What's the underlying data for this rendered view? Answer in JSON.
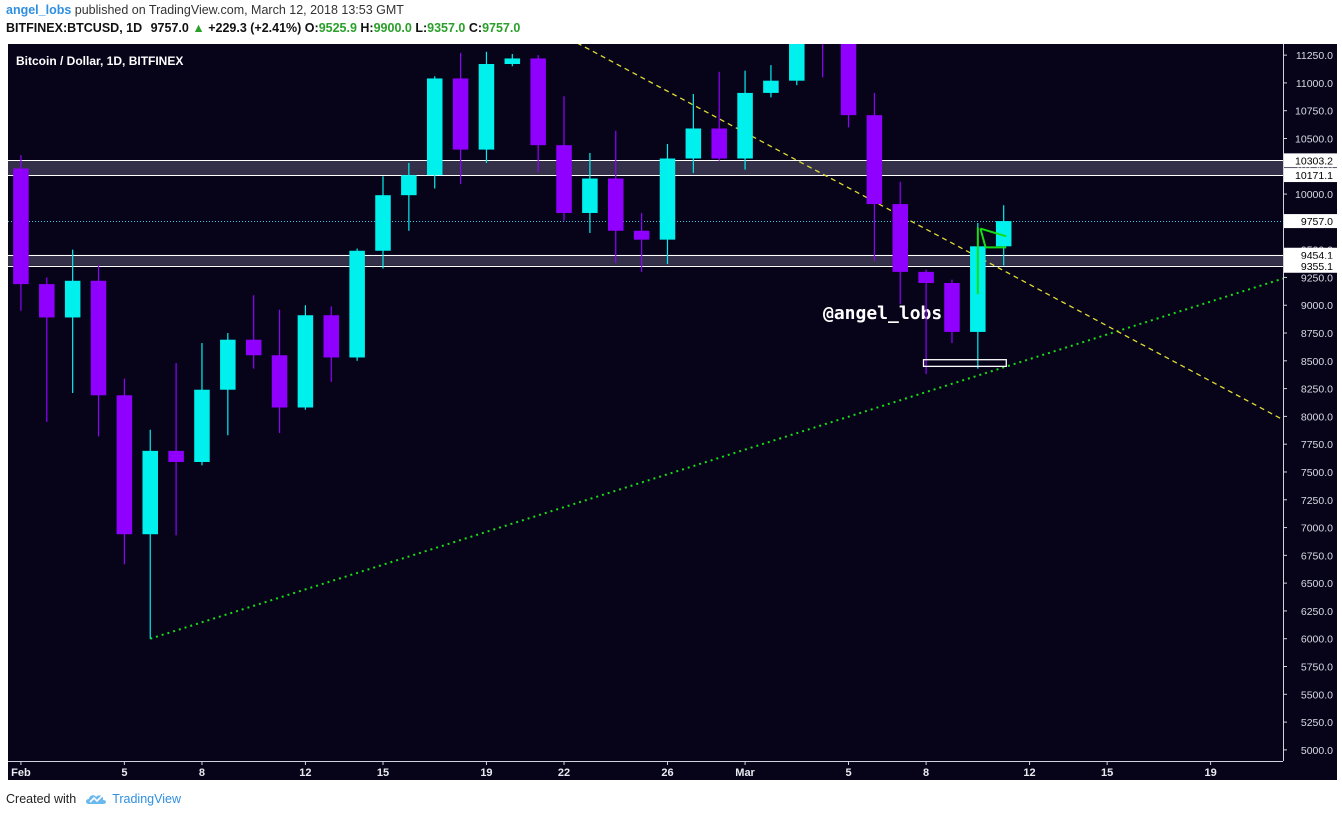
{
  "header": {
    "author": "angel_lobs",
    "published": "published on TradingView.com, March 12, 2018 13:53 GMT",
    "symbol": "BITFINEX:BTCUSD, 1D",
    "last": "9757.0",
    "change": "+229.3 (+2.41%)",
    "o_label": "O:",
    "o_value": "9525.9",
    "h_label": "H:",
    "h_value": "9900.0",
    "l_label": "L:",
    "l_value": "9357.0",
    "c_label": "C:",
    "c_value": "9757.0"
  },
  "footer": {
    "created_with": "Created with",
    "brand": "TradingView"
  },
  "colors": {
    "background": "#07041a",
    "up": "#00f0ee",
    "down": "#8f00ff",
    "support_line": "#16dd16",
    "resistance_line": "#e0dc33",
    "zone_fill": "#3a3550",
    "zone_border": "#ffffff",
    "price_line": "#39c8e6"
  },
  "chart_data": {
    "type": "candlestick",
    "title": "Bitcoin / Dollar, 1D, BITFINEX",
    "watermark": "@angel_lobs",
    "ylim": [
      4900,
      11350
    ],
    "y_ticks": [
      5000,
      5250,
      5500,
      5750,
      6000,
      6250,
      6500,
      6750,
      7000,
      7250,
      7500,
      7750,
      8000,
      8250,
      8500,
      8750,
      9000,
      9250,
      9500,
      9750,
      10000,
      10250,
      10500,
      10750,
      11000,
      11250
    ],
    "y_tick_labels": [
      "5000.0",
      "5250.0",
      "5500.0",
      "5750.0",
      "6000.0",
      "6250.0",
      "6500.0",
      "6750.0",
      "7000.0",
      "7250.0",
      "7500.0",
      "7750.0",
      "8000.0",
      "8250.0",
      "8500.0",
      "8750.0",
      "9000.0",
      "9250.0",
      "9500.0",
      "9750.0",
      "10000.0",
      "10250.0",
      "10500.0",
      "10750.0",
      "11000.0",
      "11250.0"
    ],
    "x_ticks": [
      {
        "day": 0,
        "label": "Feb"
      },
      {
        "day": 4,
        "label": "5"
      },
      {
        "day": 7,
        "label": "8"
      },
      {
        "day": 11,
        "label": "12"
      },
      {
        "day": 14,
        "label": "15"
      },
      {
        "day": 18,
        "label": "19"
      },
      {
        "day": 21,
        "label": "22"
      },
      {
        "day": 25,
        "label": "26"
      },
      {
        "day": 28,
        "label": "Mar"
      },
      {
        "day": 32,
        "label": "5"
      },
      {
        "day": 35,
        "label": "8"
      },
      {
        "day": 39,
        "label": "12"
      },
      {
        "day": 42,
        "label": "15"
      },
      {
        "day": 46,
        "label": "19"
      }
    ],
    "x_range_days": [
      -0.5,
      48.8
    ],
    "candles": [
      {
        "d": 0,
        "o": 10230,
        "h": 10350,
        "l": 8950,
        "c": 9190
      },
      {
        "d": 1,
        "o": 9190,
        "h": 9250,
        "l": 7950,
        "c": 8890
      },
      {
        "d": 2,
        "o": 8890,
        "h": 9500,
        "l": 8210,
        "c": 9220
      },
      {
        "d": 3,
        "o": 9220,
        "h": 9360,
        "l": 7820,
        "c": 8190
      },
      {
        "d": 4,
        "o": 8190,
        "h": 8340,
        "l": 6670,
        "c": 6940
      },
      {
        "d": 5,
        "o": 6940,
        "h": 7880,
        "l": 6000,
        "c": 7690
      },
      {
        "d": 6,
        "o": 7690,
        "h": 8480,
        "l": 6930,
        "c": 7590
      },
      {
        "d": 7,
        "o": 7590,
        "h": 8660,
        "l": 7560,
        "c": 8240
      },
      {
        "d": 8,
        "o": 8240,
        "h": 8750,
        "l": 7830,
        "c": 8690
      },
      {
        "d": 9,
        "o": 8690,
        "h": 9090,
        "l": 8430,
        "c": 8550
      },
      {
        "d": 10,
        "o": 8550,
        "h": 8960,
        "l": 7850,
        "c": 8080
      },
      {
        "d": 11,
        "o": 8080,
        "h": 9000,
        "l": 8060,
        "c": 8910
      },
      {
        "d": 12,
        "o": 8910,
        "h": 8990,
        "l": 8310,
        "c": 8530
      },
      {
        "d": 13,
        "o": 8530,
        "h": 9510,
        "l": 8500,
        "c": 9490
      },
      {
        "d": 14,
        "o": 9490,
        "h": 10160,
        "l": 9330,
        "c": 9990
      },
      {
        "d": 15,
        "o": 9990,
        "h": 10280,
        "l": 9670,
        "c": 10170
      },
      {
        "d": 16,
        "o": 10170,
        "h": 11060,
        "l": 10050,
        "c": 11040
      },
      {
        "d": 17,
        "o": 11040,
        "h": 11270,
        "l": 10090,
        "c": 10400
      },
      {
        "d": 18,
        "o": 10400,
        "h": 11280,
        "l": 10280,
        "c": 11170
      },
      {
        "d": 19,
        "o": 11170,
        "h": 11260,
        "l": 11150,
        "c": 11220
      },
      {
        "d": 20,
        "o": 11220,
        "h": 11250,
        "l": 10200,
        "c": 10440
      },
      {
        "d": 21,
        "o": 10440,
        "h": 10880,
        "l": 9760,
        "c": 9830
      },
      {
        "d": 22,
        "o": 9830,
        "h": 10370,
        "l": 9650,
        "c": 10140
      },
      {
        "d": 23,
        "o": 10140,
        "h": 10570,
        "l": 9380,
        "c": 9670
      },
      {
        "d": 24,
        "o": 9670,
        "h": 9830,
        "l": 9300,
        "c": 9590
      },
      {
        "d": 25,
        "o": 9590,
        "h": 10450,
        "l": 9370,
        "c": 10320
      },
      {
        "d": 26,
        "o": 10320,
        "h": 10900,
        "l": 10190,
        "c": 10590
      },
      {
        "d": 27,
        "o": 10590,
        "h": 11100,
        "l": 10300,
        "c": 10320
      },
      {
        "d": 28,
        "o": 10320,
        "h": 11110,
        "l": 10220,
        "c": 10910
      },
      {
        "d": 29,
        "o": 10910,
        "h": 11160,
        "l": 10870,
        "c": 11020
      },
      {
        "d": 30,
        "o": 11020,
        "h": 11500,
        "l": 10980,
        "c": 11450
      },
      {
        "d": 31,
        "o": 11450,
        "h": 11500,
        "l": 11050,
        "c": 11430
      },
      {
        "d": 32,
        "o": 11450,
        "h": 11500,
        "l": 10600,
        "c": 10710
      },
      {
        "d": 33,
        "o": 10710,
        "h": 10910,
        "l": 9400,
        "c": 9910
      },
      {
        "d": 34,
        "o": 9910,
        "h": 10110,
        "l": 9010,
        "c": 9300
      },
      {
        "d": 35,
        "o": 9300,
        "h": 9320,
        "l": 8380,
        "c": 9200
      },
      {
        "d": 36,
        "o": 9200,
        "h": 9230,
        "l": 8660,
        "c": 8760
      },
      {
        "d": 37,
        "o": 8760,
        "h": 9740,
        "l": 8430,
        "c": 9530
      },
      {
        "d": 38,
        "o": 9530,
        "h": 9900,
        "l": 9357,
        "c": 9757
      }
    ],
    "horizontal_levels": [
      {
        "label": "10303.2",
        "value": 10303.2
      },
      {
        "label": "10171.1",
        "value": 10171.1
      },
      {
        "label": "9454.1",
        "value": 9454.1
      },
      {
        "label": "9355.1",
        "value": 9355.1
      }
    ],
    "zones": [
      {
        "from": 10171.1,
        "to": 10303.2
      },
      {
        "from": 9355.1,
        "to": 9454.1
      }
    ],
    "last_price": {
      "label": "9757.0",
      "value": 9757.0
    },
    "trendlines": [
      {
        "name": "support",
        "style": "dotted",
        "from": {
          "d": 5,
          "p": 6000
        },
        "to": {
          "d": 48.8,
          "p": 9240
        }
      },
      {
        "name": "resistance",
        "style": "dashed",
        "from": {
          "d": 21.5,
          "p": 11360
        },
        "to": {
          "d": 48.8,
          "p": 7970
        }
      }
    ],
    "small_box": {
      "from_d": 34.9,
      "to_d": 38.1,
      "low": 8450,
      "high": 8510
    },
    "drawn_marks": [
      {
        "from": {
          "d": 37.1,
          "p": 9690
        },
        "to": {
          "d": 38.1,
          "p": 9620
        }
      },
      {
        "from": {
          "d": 37.1,
          "p": 9690
        },
        "to": {
          "d": 37.3,
          "p": 9520
        }
      },
      {
        "from": {
          "d": 37.3,
          "p": 9520
        },
        "to": {
          "d": 38.1,
          "p": 9520
        }
      },
      {
        "from": {
          "d": 37.0,
          "p": 9700
        },
        "to": {
          "d": 37.0,
          "p": 9100
        }
      }
    ]
  }
}
